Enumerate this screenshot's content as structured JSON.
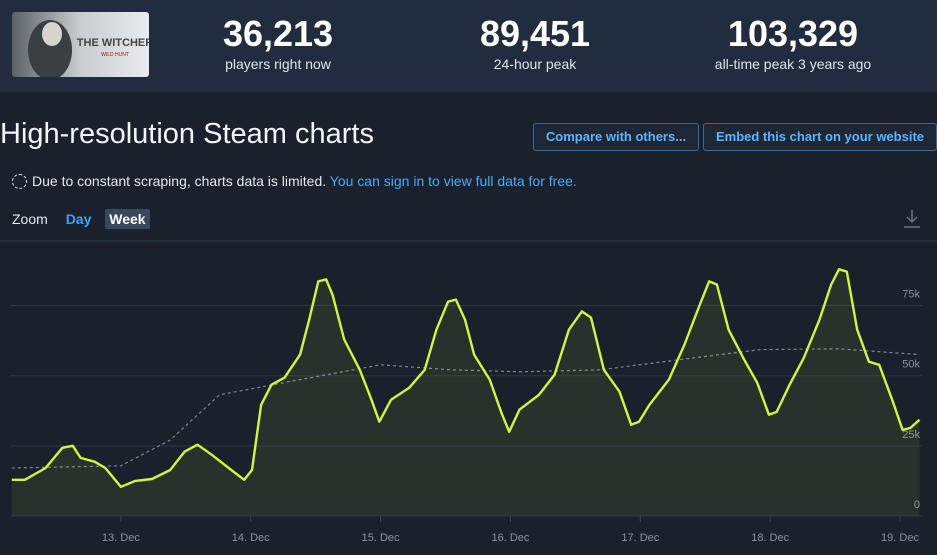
{
  "header": {
    "logo": "THE WITCHER",
    "logo_sub": "WILD HUNT",
    "stats": [
      {
        "value": "36,213",
        "label": "players right now"
      },
      {
        "value": "89,451",
        "label": "24-hour peak"
      },
      {
        "value": "103,329",
        "label": "all-time peak 3 years ago"
      }
    ]
  },
  "title": "High-resolution Steam charts",
  "buttons": [
    "Compare with others...",
    "Embed this chart on your website"
  ],
  "notice": {
    "text": "Due to constant scraping, charts data is limited.",
    "link": "You can sign in to view full data for free."
  },
  "zoom": {
    "label": "Zoom",
    "options": [
      "Day",
      "Week"
    ]
  },
  "chart_data": {
    "type": "line",
    "xlim": [
      12.15,
      19.15
    ],
    "xticks": [
      {
        "value": 13,
        "label": "13. Dec"
      },
      {
        "value": 14,
        "label": "14. Dec"
      },
      {
        "value": 15,
        "label": "15. Dec"
      },
      {
        "value": 16,
        "label": "16. Dec"
      },
      {
        "value": 17,
        "label": "17. Dec"
      },
      {
        "value": 18,
        "label": "18. Dec"
      },
      {
        "value": 19,
        "label": "19. Dec"
      }
    ],
    "ylim": [
      0,
      98000
    ],
    "yticks": [
      0,
      {
        "value": 25000,
        "label": "25k"
      },
      {
        "value": 50000,
        "label": "50k"
      },
      {
        "value": 75000,
        "label": "75k"
      }
    ],
    "grid": true,
    "series": [
      {
        "color": "#d3f53a",
        "area": true,
        "x": [
          12.16,
          12.26,
          12.42,
          12.55,
          12.63,
          12.69,
          12.8,
          12.88,
          13.0,
          13.11,
          13.24,
          13.38,
          13.49,
          13.59,
          13.7,
          13.85,
          13.95,
          14.01,
          14.08,
          14.16,
          14.26,
          14.38,
          14.45,
          14.52,
          14.58,
          14.63,
          14.72,
          14.84,
          14.93,
          14.99,
          15.08,
          15.22,
          15.34,
          15.43,
          15.52,
          15.58,
          15.65,
          15.72,
          15.84,
          15.93,
          15.99,
          16.07,
          16.22,
          16.34,
          16.45,
          16.55,
          16.62,
          16.72,
          16.84,
          16.93,
          16.99,
          17.07,
          17.22,
          17.34,
          17.45,
          17.53,
          17.59,
          17.68,
          17.8,
          17.9,
          17.99,
          18.05,
          18.15,
          18.26,
          18.38,
          18.47,
          18.53,
          18.59,
          18.67,
          18.76,
          18.84,
          18.94,
          19.02,
          19.08,
          19.15
        ],
        "values": [
          12900,
          12900,
          17100,
          24300,
          25000,
          20700,
          19300,
          17100,
          10400,
          12500,
          13200,
          16400,
          22900,
          25400,
          21800,
          16400,
          12900,
          16400,
          39600,
          46800,
          49300,
          57500,
          70000,
          83600,
          84300,
          78900,
          62900,
          52100,
          41400,
          33600,
          41400,
          45700,
          52100,
          66400,
          76400,
          77100,
          70000,
          57500,
          48600,
          36800,
          30000,
          37900,
          43200,
          50400,
          66400,
          72900,
          70700,
          52100,
          44300,
          32500,
          33600,
          39600,
          48600,
          61100,
          74300,
          83600,
          82500,
          66400,
          55700,
          47500,
          36100,
          37100,
          46800,
          56400,
          70000,
          82500,
          87900,
          87100,
          66400,
          55000,
          53900,
          41400,
          30700,
          31400,
          34300
        ]
      },
      {
        "color": "#7d8796",
        "dashed": true,
        "x": [
          12.16,
          13.0,
          13.38,
          13.76,
          14.38,
          15.0,
          15.54,
          16.08,
          16.69,
          17.3,
          17.92,
          18.53,
          19.15
        ],
        "values": [
          17100,
          17900,
          27100,
          43200,
          48600,
          53900,
          52100,
          51400,
          52100,
          55700,
          59300,
          59600,
          57500
        ]
      }
    ]
  }
}
